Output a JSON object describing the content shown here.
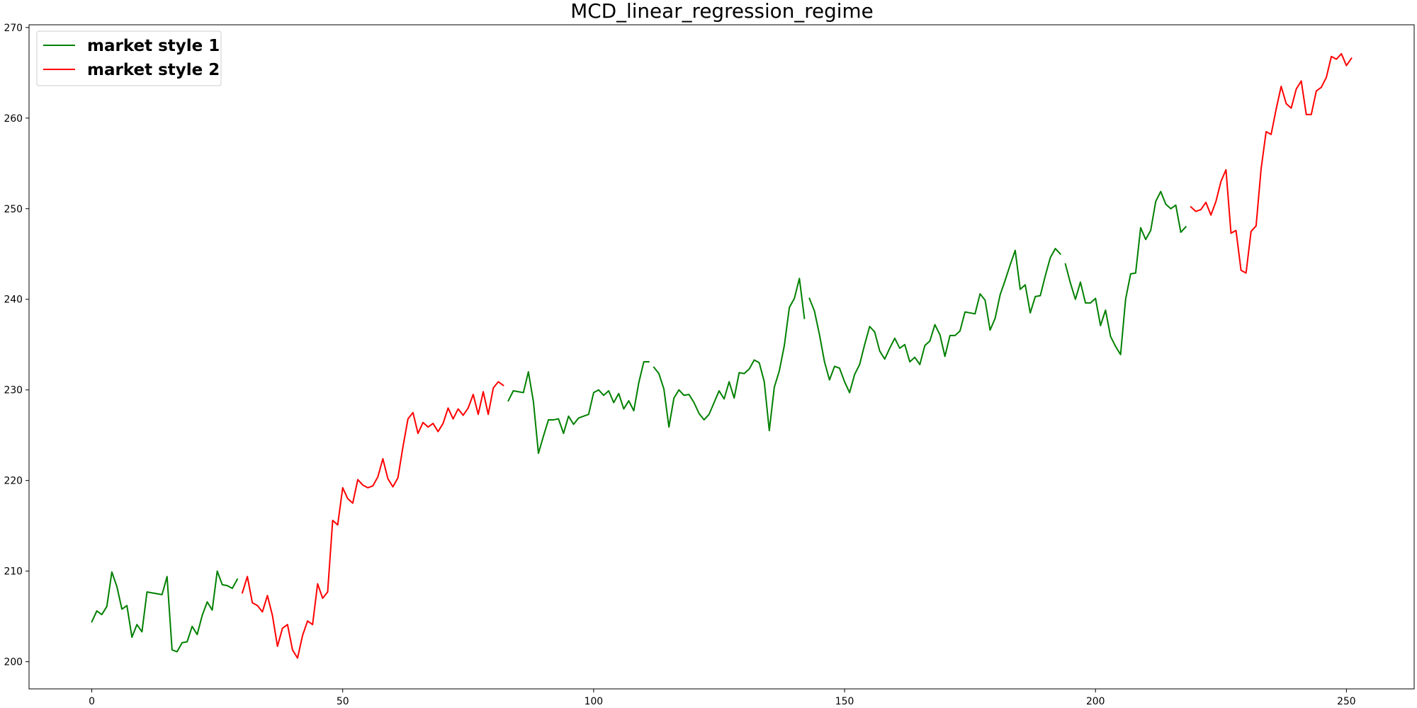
{
  "chart_data": {
    "type": "line",
    "title": "MCD_linear_regression_regime",
    "xlabel": "",
    "ylabel": "",
    "xlim": [
      -12.5,
      263.5
    ],
    "ylim": [
      197.0,
      270.3
    ],
    "x_ticks": [
      0,
      50,
      100,
      150,
      200,
      250
    ],
    "y_ticks": [
      200,
      210,
      220,
      230,
      240,
      250,
      260,
      270
    ],
    "grid": false,
    "legend_position": "top-left",
    "colors": {
      "market style 1": "#008000",
      "market style 2": "#ff0000"
    },
    "series": [
      {
        "name": "market style 1",
        "color": "#008000",
        "segments": [
          {
            "x_start": 0,
            "values": [
              204.4,
              205.6,
              205.2,
              206.1,
              209.9,
              208.3,
              205.8,
              206.2,
              202.7,
              204.1,
              203.3,
              207.7,
              207.6,
              207.5,
              207.4,
              209.4,
              201.3,
              201.1,
              202.1,
              202.2,
              203.9,
              203.0,
              205.1,
              206.6,
              205.7,
              210.0,
              208.5,
              208.4,
              208.1,
              209.1
            ]
          },
          {
            "x_start": 83,
            "values": [
              228.8,
              229.9,
              229.8,
              229.7,
              232.0,
              228.7,
              223.0,
              224.9,
              226.7,
              226.7,
              226.8,
              225.2,
              227.1,
              226.2,
              226.9,
              227.1,
              227.3,
              229.7,
              230.0,
              229.4,
              229.9,
              228.6,
              229.6,
              227.9,
              228.8,
              227.7,
              230.8,
              233.1,
              233.1
            ]
          },
          {
            "x_start": 112,
            "values": [
              232.5,
              231.8,
              230.1,
              225.9,
              229.1,
              230.0,
              229.4,
              229.5,
              228.6,
              227.4,
              226.7,
              227.3,
              228.6,
              229.9,
              229.0,
              230.9,
              229.1,
              231.9,
              231.8,
              232.3,
              233.3,
              233.0,
              230.9,
              225.5,
              230.3,
              232.1,
              234.9,
              239.1,
              240.1,
              242.3,
              237.9
            ]
          },
          {
            "x_start": 143,
            "values": [
              240.1,
              238.7,
              236.1,
              233.1,
              231.1,
              232.6,
              232.4,
              230.9,
              229.7,
              231.7,
              232.8,
              235.0,
              237.0,
              236.4,
              234.3,
              233.4,
              234.6,
              235.7,
              234.6,
              235.0,
              233.1,
              233.6,
              232.8,
              234.9,
              235.4,
              237.2,
              236.1,
              233.7,
              236.0,
              236.0,
              236.5,
              238.6,
              238.5,
              238.4,
              240.6,
              239.9,
              236.6,
              237.9,
              240.5,
              242.1,
              243.8,
              245.4,
              241.1,
              241.6,
              238.5,
              240.3,
              240.4,
              242.6,
              244.6,
              245.6,
              245.0
            ]
          },
          {
            "x_start": 194,
            "values": [
              243.9,
              241.8,
              240.0,
              241.9,
              239.6,
              239.6,
              240.1,
              237.1,
              238.8,
              235.9,
              234.8,
              233.9,
              240.0,
              242.8,
              242.9,
              247.9,
              246.6,
              247.6,
              250.8,
              251.9,
              250.5,
              250.0,
              250.4,
              247.4,
              248.0
            ]
          }
        ]
      },
      {
        "name": "market style 2",
        "color": "#ff0000",
        "segments": [
          {
            "x_start": 30,
            "values": [
              207.6,
              209.4,
              206.5,
              206.2,
              205.5,
              207.3,
              205.1,
              201.7,
              203.7,
              204.1,
              201.3,
              200.4,
              202.9,
              204.5,
              204.1,
              208.6,
              207.0,
              207.7,
              215.6,
              215.1,
              219.2,
              218.0,
              217.5,
              220.1,
              219.5,
              219.2,
              219.4,
              220.4,
              222.4,
              220.2,
              219.3,
              220.3,
              223.7,
              226.8,
              227.5,
              225.2,
              226.4,
              225.9,
              226.3,
              225.4,
              226.3,
              228.0,
              226.8,
              227.9,
              227.2,
              228.0,
              229.5,
              227.3,
              229.8,
              227.3,
              230.2,
              230.9,
              230.5
            ]
          },
          {
            "x_start": 219,
            "values": [
              250.2,
              249.7,
              249.9,
              250.7,
              249.3,
              250.8,
              253.0,
              254.3,
              247.3,
              247.6,
              243.2,
              242.9,
              247.5,
              248.1,
              254.4,
              258.5,
              258.2,
              261.0,
              263.5,
              261.6,
              261.1,
              263.2,
              264.1,
              260.4,
              260.4,
              263.0,
              263.4,
              264.5,
              266.8,
              266.5,
              267.1,
              265.8,
              266.6
            ]
          }
        ]
      }
    ]
  }
}
